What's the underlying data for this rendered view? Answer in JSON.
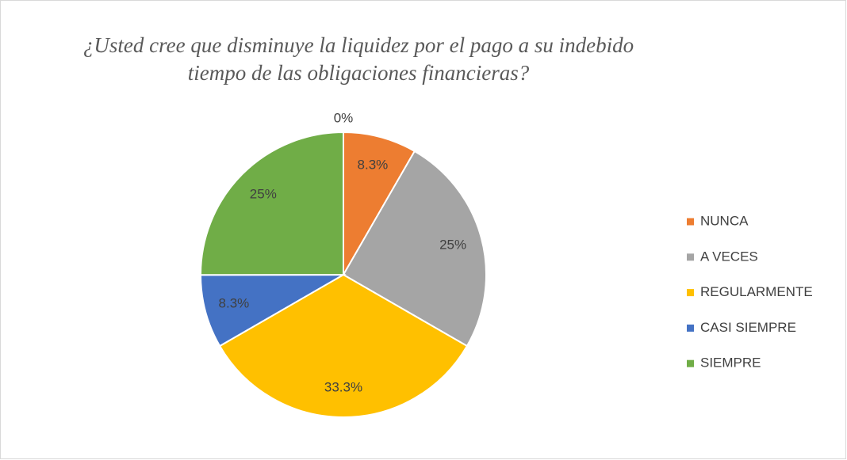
{
  "chart_data": {
    "type": "pie",
    "title": [
      "¿Usted cree que disminuye la liquidez por el pago a su indebido",
      "tiempo de las obligaciones financieras?"
    ],
    "categories": [
      null,
      "NUNCA",
      "A VECES",
      "REGULARMENTE",
      "CASI SIEMPRE",
      "SIEMPRE"
    ],
    "values": [
      0,
      8.3,
      25,
      33.3,
      8.3,
      25
    ],
    "value_labels": [
      "0%",
      "8.3%",
      "25%",
      "33.3%",
      "8.3%",
      "25%"
    ],
    "colors": [
      "#4472c4",
      "#ed7d31",
      "#a5a5a5",
      "#ffc000",
      "#4472c4",
      "#70ad47"
    ],
    "legend": "right"
  }
}
